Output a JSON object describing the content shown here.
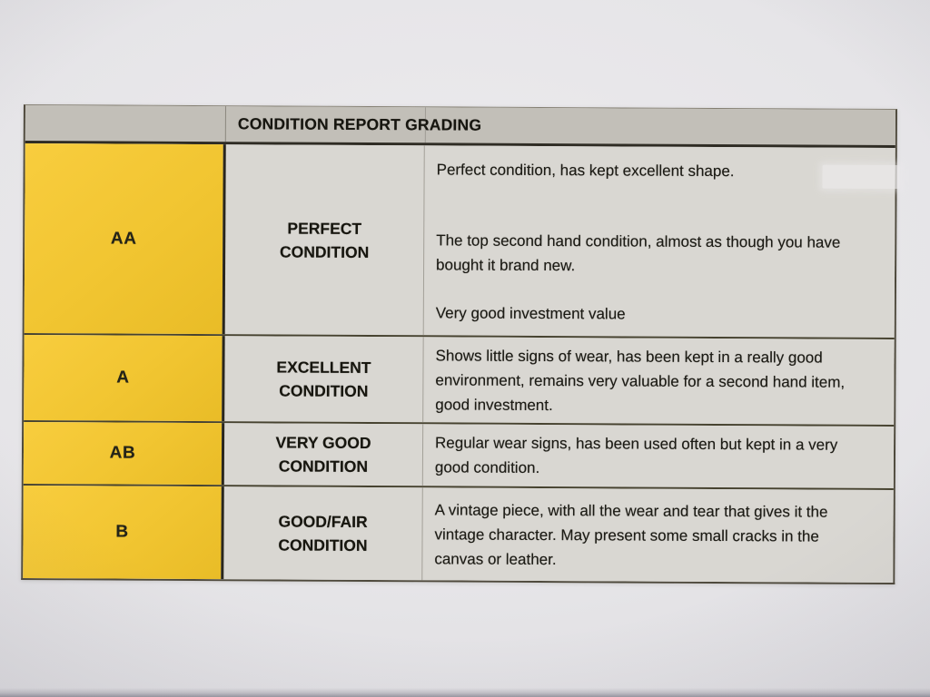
{
  "grading_table": {
    "title": "CONDITION REPORT GRADING",
    "rows": [
      {
        "grade": "AA",
        "condition": "PERFECT CONDITION",
        "descriptions": [
          "Perfect condition, has kept excellent shape.",
          "The top second hand condition, almost as though you have bought it brand new.",
          "Very good investment value"
        ]
      },
      {
        "grade": "A",
        "condition": "EXCELLENT CONDITION",
        "descriptions": [
          "Shows little signs of wear, has been kept in a really good environment, remains very valuable for a second hand item, good investment."
        ]
      },
      {
        "grade": "AB",
        "condition": "VERY GOOD CONDITION",
        "descriptions": [
          "Regular wear signs, has been used often but kept in a very good condition."
        ]
      },
      {
        "grade": "B",
        "condition": "GOOD/FAIR CONDITION",
        "descriptions": [
          "A vintage piece, with all the wear and tear that gives it the vintage character. May present some small cracks in the canvas or leather."
        ]
      }
    ],
    "colors": {
      "grade_column": "#f1c531",
      "header_band": "#c2bfb8",
      "cell_background": "#d9d7d2",
      "paper": "#e6e5e8",
      "border_dark": "#46422f",
      "text": "#1c1b15"
    }
  }
}
